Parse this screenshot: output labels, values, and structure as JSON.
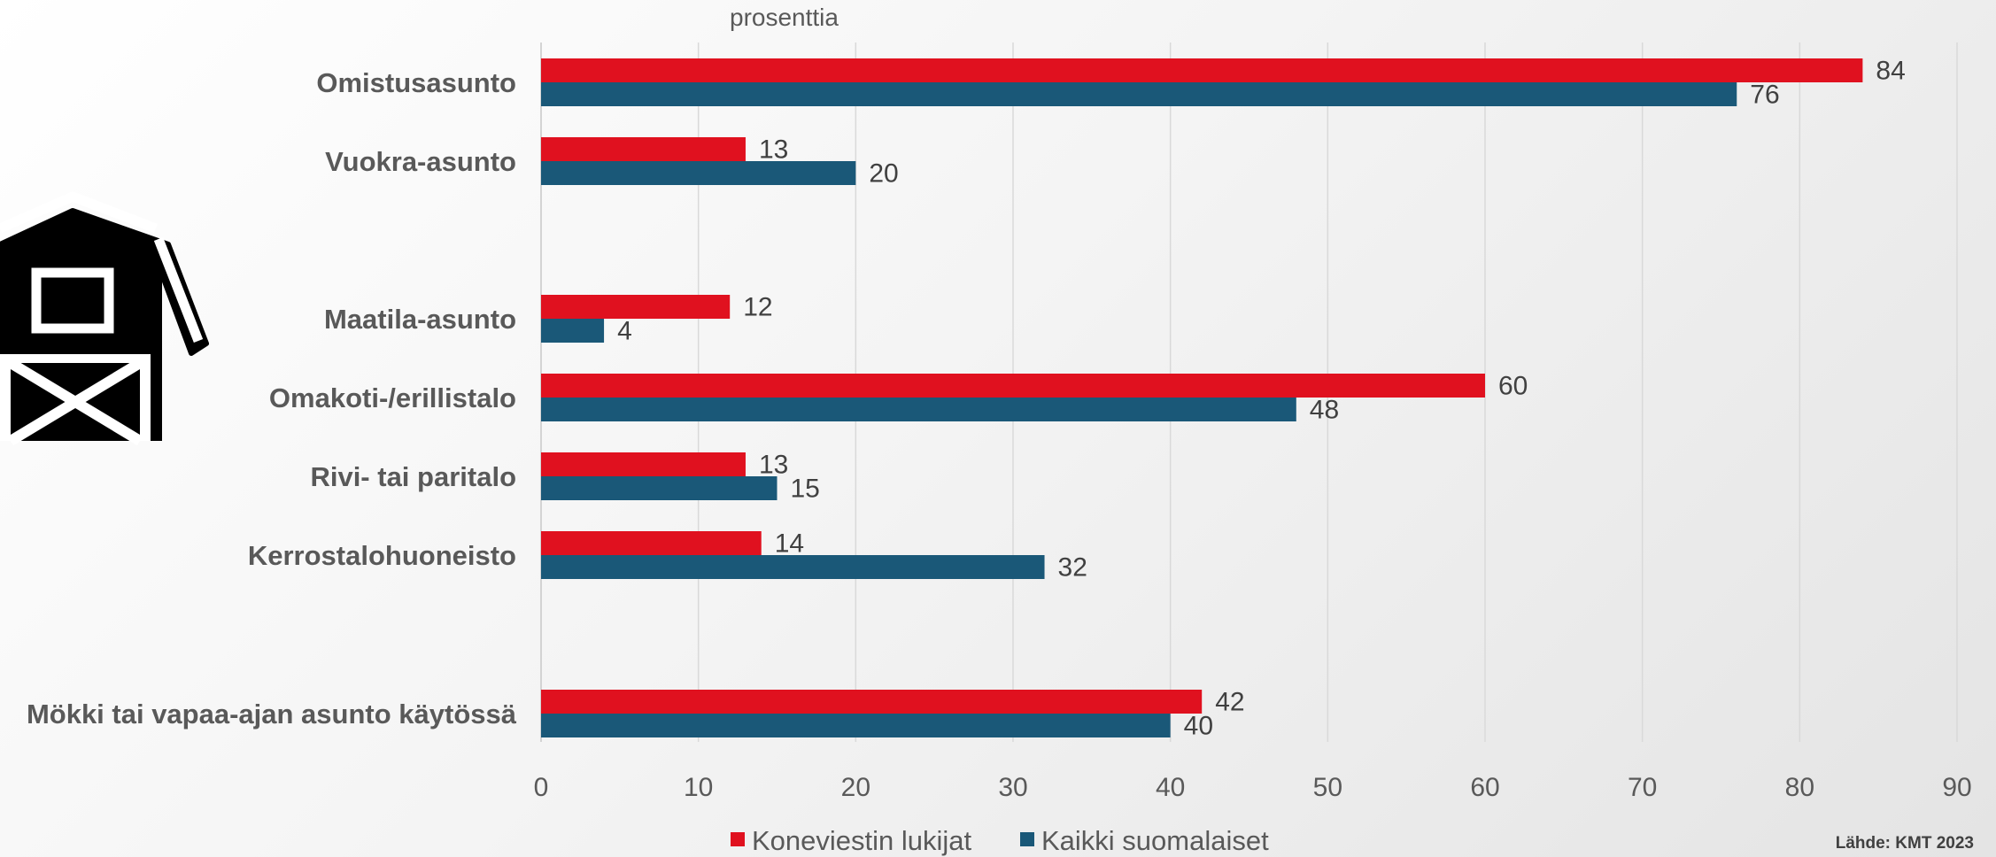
{
  "chart_data": {
    "type": "bar",
    "orientation": "horizontal",
    "unit_label": "prosenttia",
    "source": "Lähde: KMT 2023",
    "categories": [
      "Omistusasunto",
      "Vuokra-asunto",
      "Maatila-asunto",
      "Omakoti-/erillistalo",
      "Rivi- tai paritalo",
      "Kerrostalohuoneisto",
      "Mökki tai vapaa-ajan asunto käytössä"
    ],
    "series": [
      {
        "name": "Koneviestin lukijat",
        "color": "#e0111f",
        "values": [
          84,
          13,
          12,
          60,
          13,
          14,
          42
        ]
      },
      {
        "name": "Kaikki suomalaiset",
        "color": "#1a5878",
        "values": [
          76,
          20,
          4,
          48,
          15,
          32,
          40
        ]
      }
    ],
    "xlim": [
      0,
      90
    ],
    "xticks": [
      0,
      10,
      20,
      30,
      40,
      50,
      60,
      70,
      80,
      90
    ],
    "grid": true,
    "legend_position": "bottom",
    "decoration_icon": "barn-icon"
  }
}
